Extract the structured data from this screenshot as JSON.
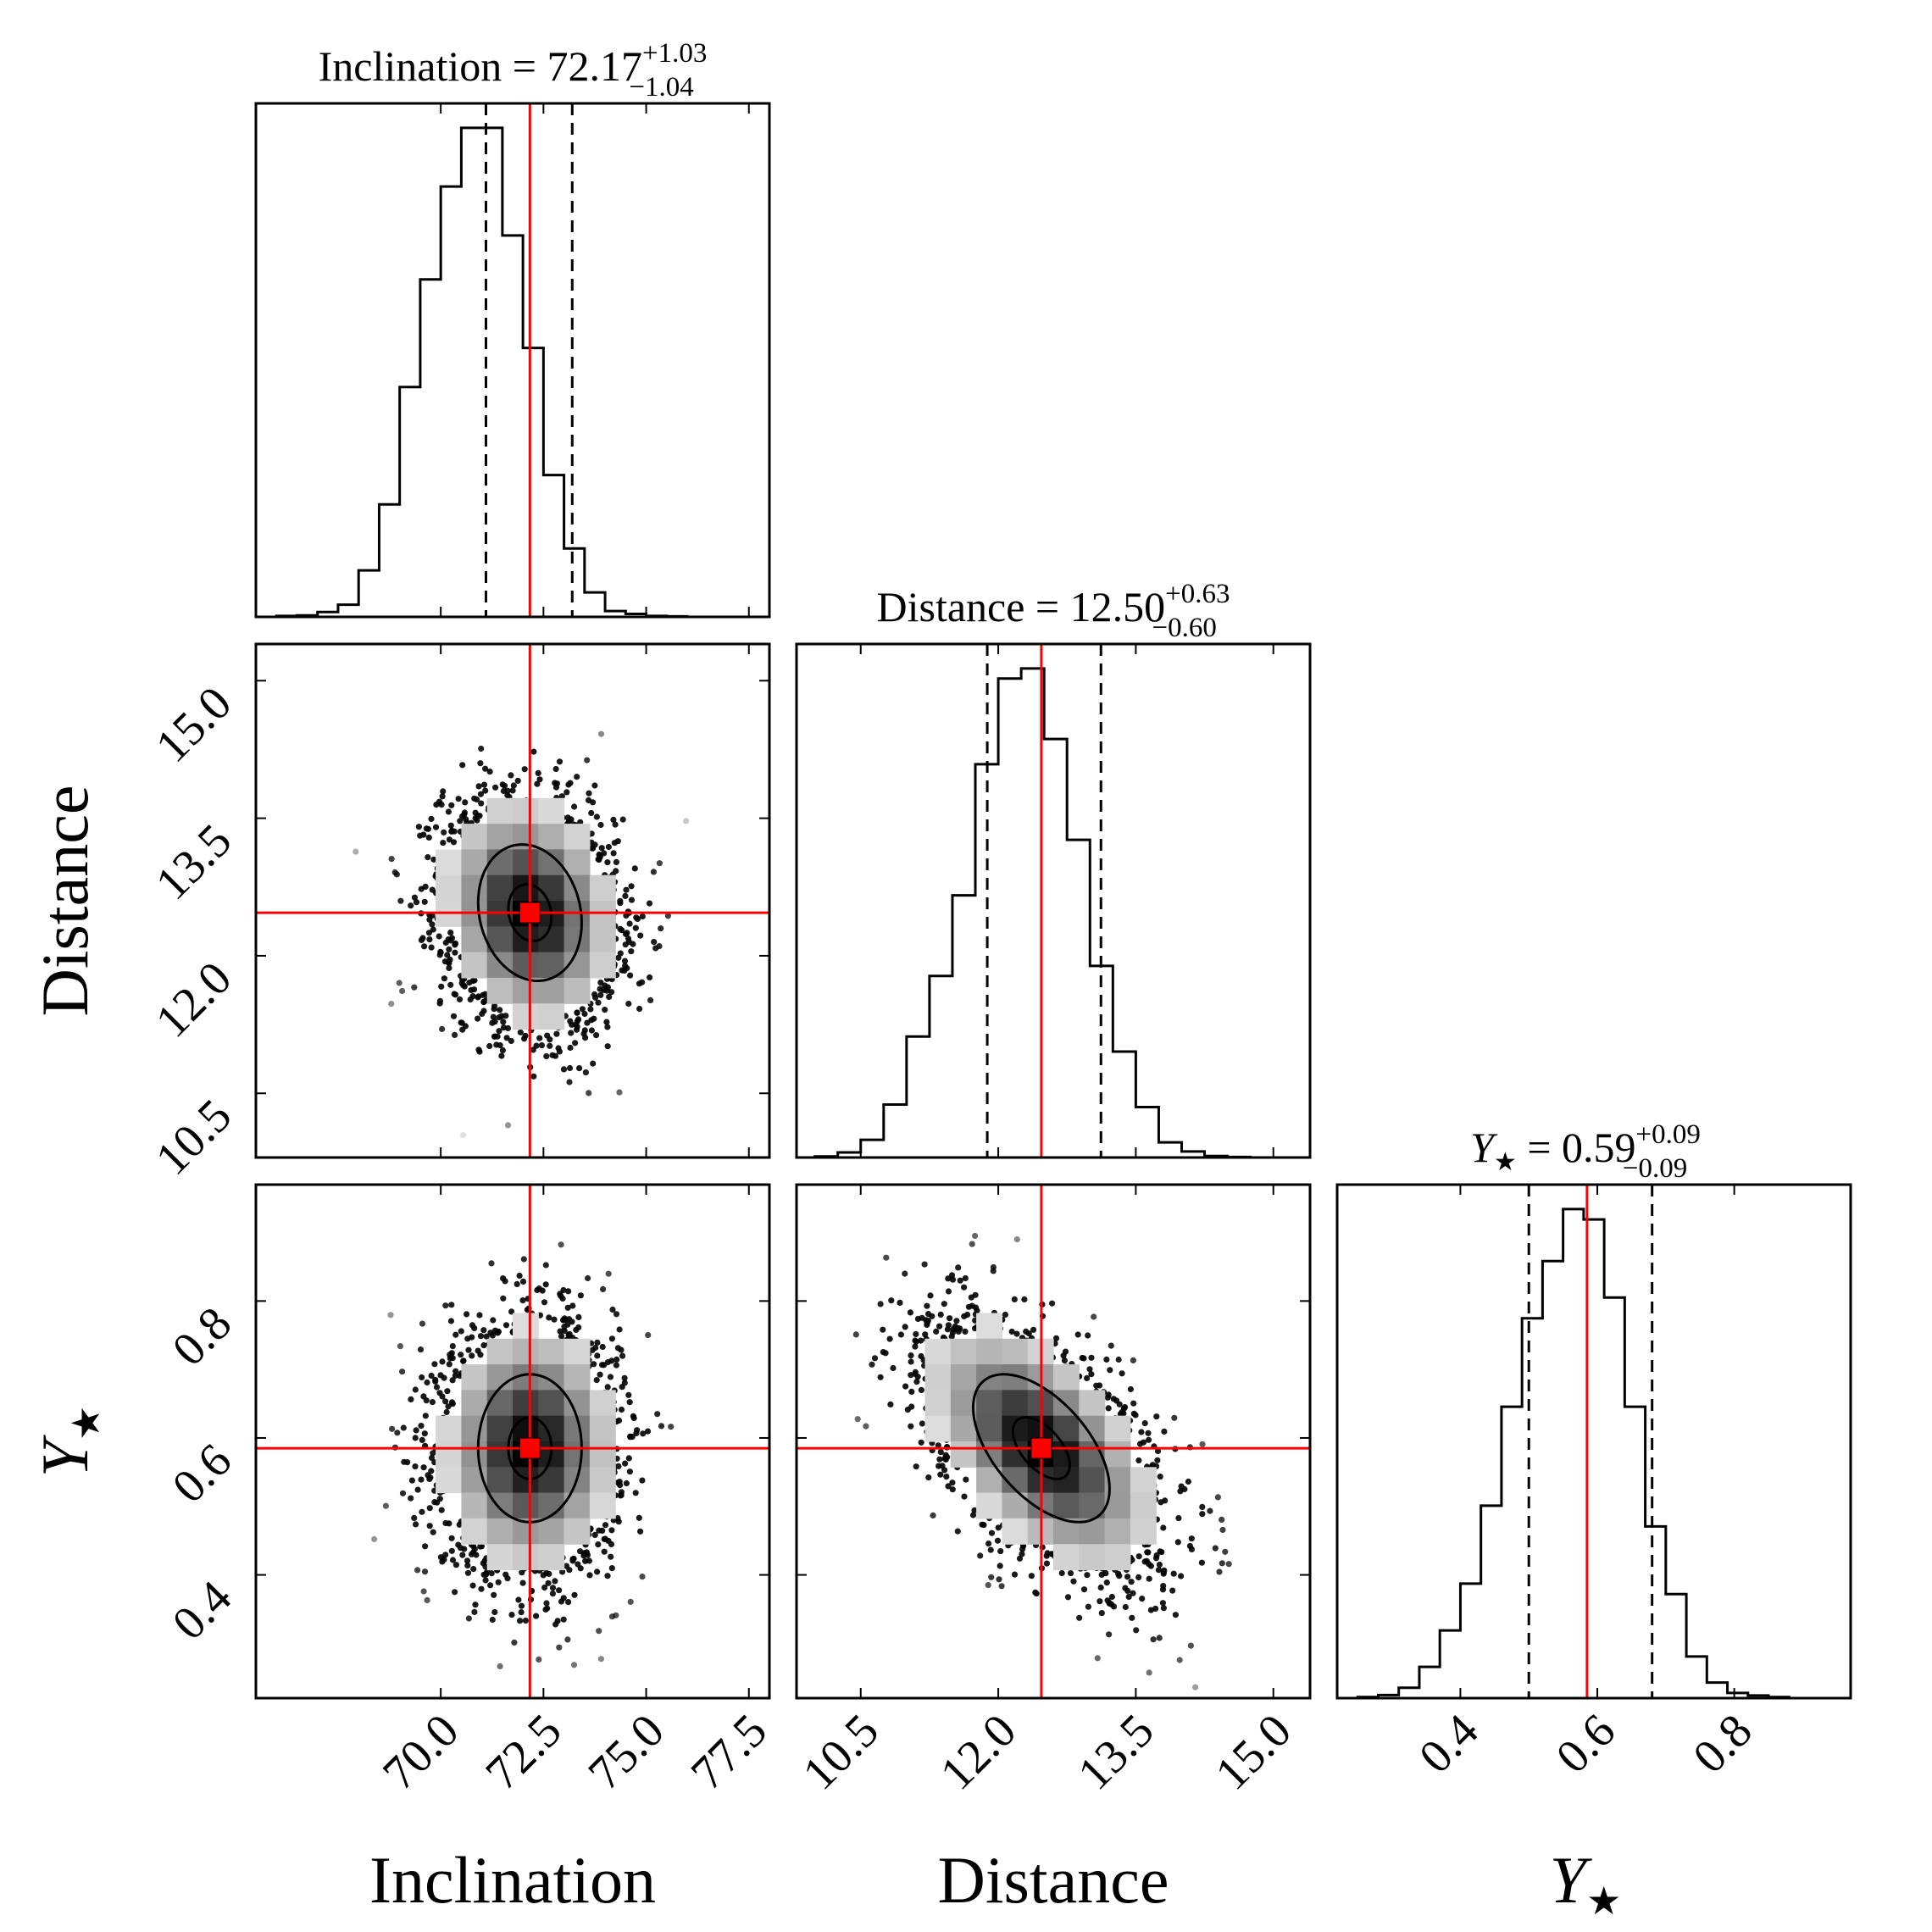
{
  "chart_data": {
    "type": "corner",
    "parameters": [
      {
        "key": "inc",
        "label": "Inclination",
        "range": [
          65.5,
          78.0
        ],
        "ticks": [
          "70.0",
          "72.5",
          "75.0",
          "77.5"
        ],
        "tick_values": [
          70.0,
          72.5,
          75.0,
          77.5
        ]
      },
      {
        "key": "dist",
        "label": "Distance",
        "range": [
          9.8,
          15.4
        ],
        "ticks": [
          "10.5",
          "12.0",
          "13.5",
          "15.0"
        ],
        "tick_values": [
          10.5,
          12.0,
          13.5,
          15.0
        ]
      },
      {
        "key": "ystar",
        "label": "Y",
        "label_sub": "★",
        "range": [
          0.22,
          0.97
        ],
        "ticks": [
          "0.4",
          "0.6",
          "0.8"
        ],
        "tick_values": [
          0.4,
          0.6,
          0.8
        ]
      }
    ],
    "titles": [
      {
        "name": "Inclination",
        "eq": " = ",
        "value": "72.17",
        "plus": "+1.03",
        "minus": "−1.04"
      },
      {
        "name": "Distance",
        "eq": " = ",
        "value": "12.50",
        "plus": "+0.63",
        "minus": "−0.60"
      },
      {
        "name": "Y",
        "sub": "★",
        "eq": " = ",
        "value": "0.59",
        "plus": "+0.09",
        "minus": "−0.09"
      }
    ],
    "truths": {
      "inc": 72.17,
      "dist": 12.47,
      "ystar": 0.585
    },
    "quantiles": {
      "inc": [
        71.1,
        73.2
      ],
      "dist": [
        11.88,
        13.12
      ],
      "ystar": [
        0.5,
        0.68
      ]
    },
    "histograms": {
      "inc": {
        "bin_edges": [
          66.0,
          66.5,
          67.0,
          67.5,
          68.0,
          68.5,
          69.0,
          69.5,
          70.0,
          70.5,
          71.0,
          71.5,
          72.0,
          72.5,
          73.0,
          73.5,
          74.0,
          74.5,
          75.0,
          75.5,
          76.0,
          76.5,
          77.0
        ],
        "counts": [
          0.2,
          0.3,
          1.0,
          2.5,
          9.5,
          23.0,
          47.0,
          69.0,
          88.0,
          100.0,
          100.0,
          78.0,
          55.0,
          29.0,
          14.0,
          5.0,
          1.2,
          0.6,
          0.2,
          0.1,
          0.0,
          0.0
        ]
      },
      "dist": {
        "bin_edges": [
          10.0,
          10.25,
          10.5,
          10.75,
          11.0,
          11.25,
          11.5,
          11.75,
          12.0,
          12.25,
          12.5,
          12.75,
          13.0,
          13.25,
          13.5,
          13.75,
          14.0,
          14.25,
          14.5,
          14.75
        ],
        "counts": [
          0.2,
          1.0,
          3.5,
          10.5,
          24.0,
          36.0,
          52.0,
          78.0,
          95.0,
          97.0,
          83.0,
          63.0,
          38.0,
          21.0,
          10.0,
          3.0,
          1.2,
          0.3,
          0.1
        ]
      },
      "ystar": {
        "bin_edges": [
          0.25,
          0.28,
          0.31,
          0.34,
          0.37,
          0.4,
          0.43,
          0.46,
          0.49,
          0.52,
          0.55,
          0.58,
          0.61,
          0.64,
          0.67,
          0.7,
          0.73,
          0.76,
          0.79,
          0.82,
          0.85,
          0.88,
          0.91
        ],
        "counts": [
          0.2,
          0.6,
          2.0,
          6.0,
          13.0,
          22.0,
          37.0,
          56.0,
          73.0,
          84.0,
          94.0,
          92.0,
          77.0,
          56.0,
          33.0,
          20.0,
          8.0,
          3.0,
          1.0,
          0.5,
          0.2,
          0.0
        ]
      }
    },
    "pairs": [
      {
        "x": "inc",
        "y": "dist",
        "center": [
          72.17,
          12.47
        ],
        "sigma": [
          1.05,
          0.62
        ],
        "rho": -0.15
      },
      {
        "x": "inc",
        "y": "ystar",
        "center": [
          72.17,
          0.585
        ],
        "sigma": [
          1.05,
          0.09
        ],
        "rho": 0.0
      },
      {
        "x": "dist",
        "y": "ystar",
        "center": [
          12.47,
          0.585
        ],
        "sigma": [
          0.62,
          0.09
        ],
        "rho": -0.55
      }
    ],
    "contour_levels_sigma": [
      0.5,
      1.2
    ],
    "colors": {
      "truth": "#ff0000",
      "hist": "#000000",
      "scatter": "#000000"
    }
  }
}
